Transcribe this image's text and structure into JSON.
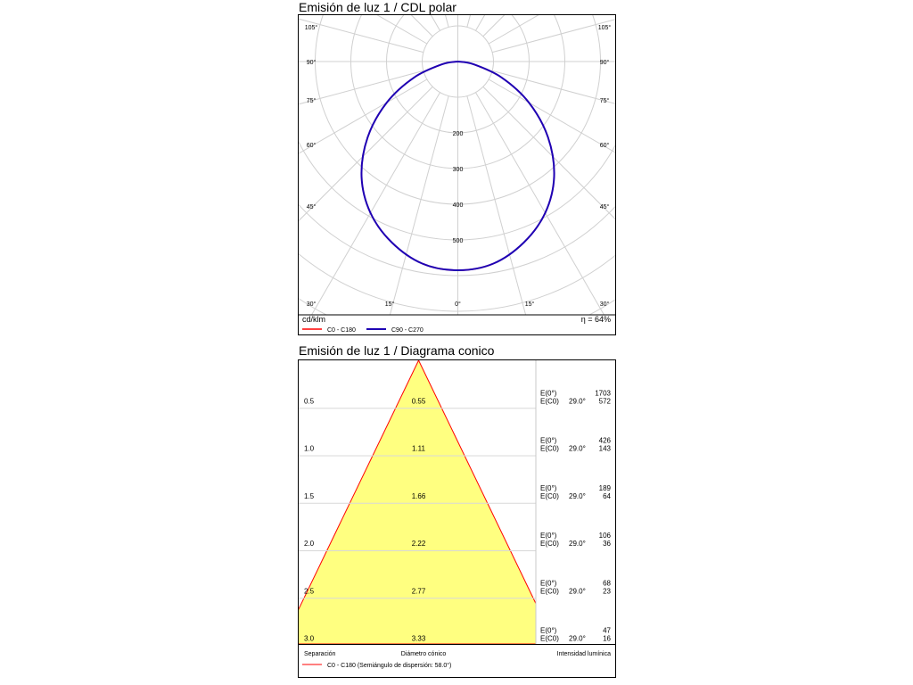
{
  "chart_data": [
    {
      "type": "polar",
      "title": "Emisión de luz 1 / CDL polar",
      "unit_label": "cd/klm",
      "efficiency_label": "η = 64%",
      "angle_labels": [
        "105°",
        "90°",
        "75°",
        "60°",
        "45°",
        "30°",
        "15°",
        "0°",
        "15°",
        "30°",
        "45°",
        "60°",
        "75°",
        "90°",
        "105°"
      ],
      "radial_ticks": [
        200,
        300,
        400,
        500
      ],
      "grid": true,
      "series": [
        {
          "name": "C0 - C180",
          "color": "#ff0000",
          "angles": [
            0,
            10,
            20,
            30,
            40,
            50,
            60,
            70,
            80,
            90
          ],
          "values": [
            585,
            575,
            540,
            490,
            420,
            330,
            230,
            130,
            45,
            0
          ]
        },
        {
          "name": "C90 - C270",
          "color": "#1e00b4",
          "angles": [
            0,
            10,
            20,
            30,
            40,
            50,
            60,
            70,
            80,
            90
          ],
          "values": [
            585,
            575,
            540,
            490,
            420,
            330,
            230,
            130,
            45,
            0
          ]
        }
      ]
    },
    {
      "type": "table",
      "title": "Emisión de luz 1 / Diagrama conico",
      "half_angle_deg": 29.0,
      "fill_color": "#ffff80",
      "edge_color": "#ff0000",
      "rows": [
        {
          "separation": "0.5",
          "diameter": "0.55",
          "e0_label": "E(0°)",
          "ec0_label": "E(C0)",
          "angle": "29.0°",
          "e0": "1703",
          "ec0": "572"
        },
        {
          "separation": "1.0",
          "diameter": "1.11",
          "e0_label": "E(0°)",
          "ec0_label": "E(C0)",
          "angle": "29.0°",
          "e0": "426",
          "ec0": "143"
        },
        {
          "separation": "1.5",
          "diameter": "1.66",
          "e0_label": "E(0°)",
          "ec0_label": "E(C0)",
          "angle": "29.0°",
          "e0": "189",
          "ec0": "64"
        },
        {
          "separation": "2.0",
          "diameter": "2.22",
          "e0_label": "E(0°)",
          "ec0_label": "E(C0)",
          "angle": "29.0°",
          "e0": "106",
          "ec0": "36"
        },
        {
          "separation": "2.5",
          "diameter": "2.77",
          "e0_label": "E(0°)",
          "ec0_label": "E(C0)",
          "angle": "29.0°",
          "e0": "68",
          "ec0": "23"
        },
        {
          "separation": "3.0",
          "diameter": "3.33",
          "e0_label": "E(0°)",
          "ec0_label": "E(C0)",
          "angle": "29.0°",
          "e0": "47",
          "ec0": "16"
        }
      ],
      "footer": {
        "separation_label": "Separación",
        "diameter_label": "Diámetro cónico",
        "intensity_label": "Intensidad lumínica",
        "legend": "C0 - C180 (Semiángulo de dispersión: 58.0°)"
      }
    }
  ]
}
